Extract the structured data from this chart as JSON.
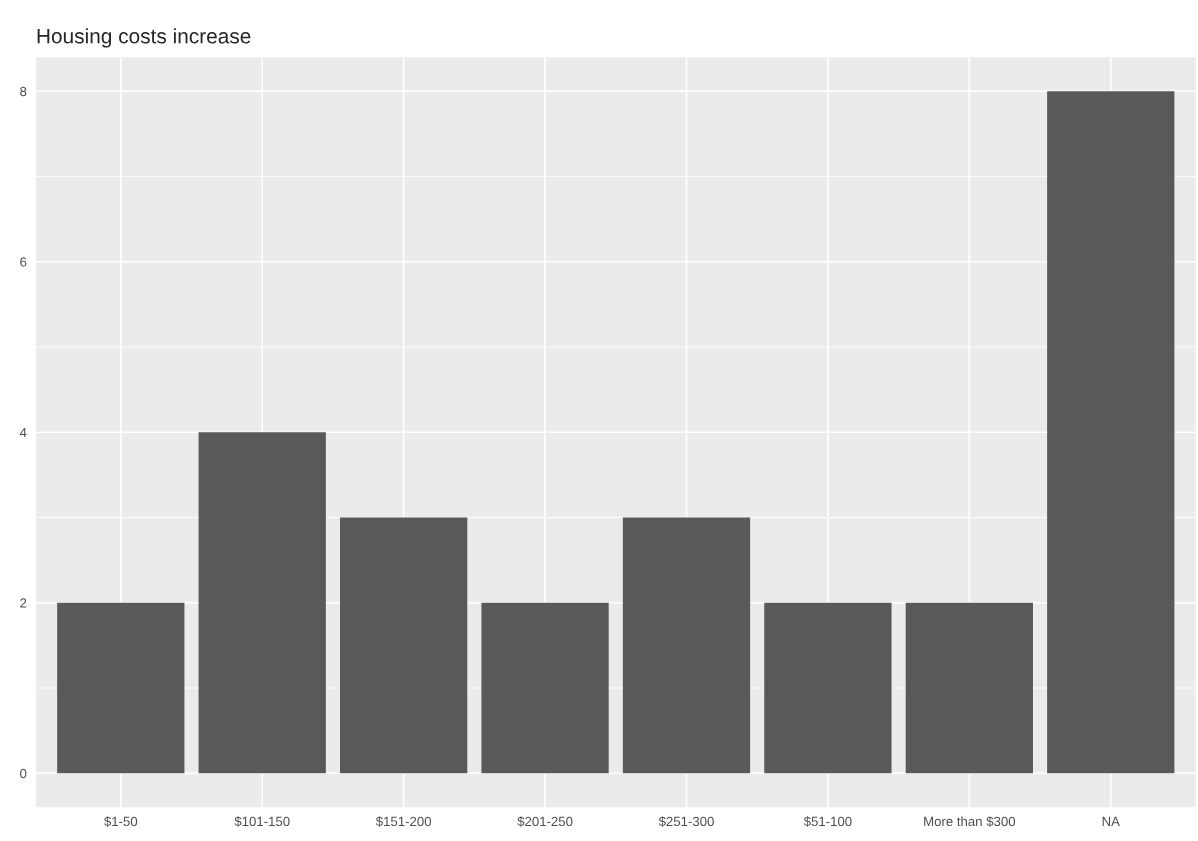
{
  "chart_data": {
    "type": "bar",
    "title": "Housing costs increase",
    "categories": [
      "$1-50",
      "$101-150",
      "$151-200",
      "$201-250",
      "$251-300",
      "$51-100",
      "More than $300",
      "NA"
    ],
    "values": [
      2,
      4,
      3,
      2,
      3,
      2,
      2,
      8
    ],
    "color": "#595959",
    "ylim": [
      -0.4,
      8.4
    ],
    "yticks": [
      0,
      2,
      4,
      6,
      8
    ],
    "grid": true
  }
}
